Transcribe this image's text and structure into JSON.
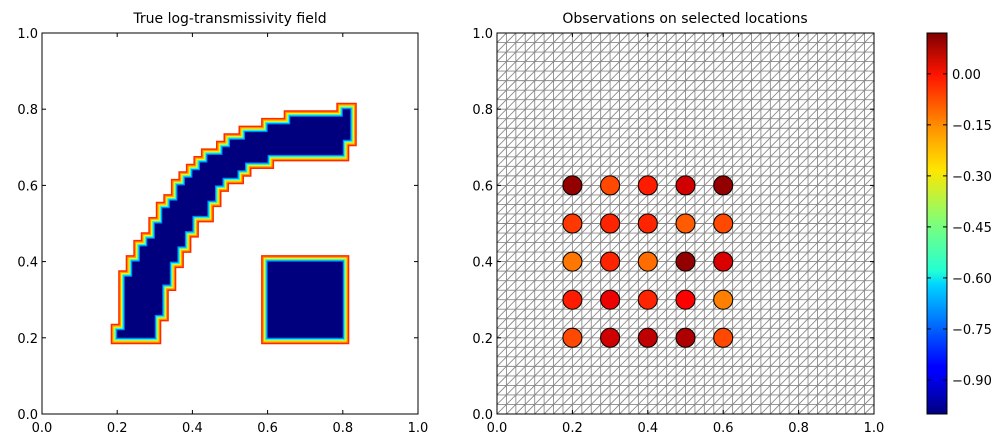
{
  "chart_data": [
    {
      "type": "heatmap",
      "title": "True log-transmissivity field",
      "xlim": [
        0.0,
        1.0
      ],
      "ylim": [
        0.0,
        1.0
      ],
      "xticks": [
        "0.0",
        "0.2",
        "0.4",
        "0.6",
        "0.8",
        "1.0"
      ],
      "yticks": [
        "0.0",
        "0.2",
        "0.4",
        "0.6",
        "0.8",
        "1.0"
      ],
      "grid": false,
      "background_value": 0.0,
      "regions": [
        {
          "name": "curved band",
          "value": -1.0,
          "polygon": [
            [
              0.2,
              0.2
            ],
            [
              0.3,
              0.2
            ],
            [
              0.3,
              0.26
            ],
            [
              0.32,
              0.26
            ],
            [
              0.32,
              0.34
            ],
            [
              0.34,
              0.34
            ],
            [
              0.34,
              0.4
            ],
            [
              0.36,
              0.4
            ],
            [
              0.36,
              0.44
            ],
            [
              0.38,
              0.44
            ],
            [
              0.38,
              0.48
            ],
            [
              0.4,
              0.48
            ],
            [
              0.4,
              0.52
            ],
            [
              0.44,
              0.52
            ],
            [
              0.44,
              0.56
            ],
            [
              0.46,
              0.56
            ],
            [
              0.46,
              0.6
            ],
            [
              0.48,
              0.6
            ],
            [
              0.48,
              0.62
            ],
            [
              0.52,
              0.62
            ],
            [
              0.52,
              0.64
            ],
            [
              0.54,
              0.64
            ],
            [
              0.54,
              0.66
            ],
            [
              0.6,
              0.66
            ],
            [
              0.6,
              0.68
            ],
            [
              0.8,
              0.68
            ],
            [
              0.8,
              0.72
            ],
            [
              0.82,
              0.72
            ],
            [
              0.82,
              0.8
            ],
            [
              0.8,
              0.8
            ],
            [
              0.8,
              0.78
            ],
            [
              0.66,
              0.78
            ],
            [
              0.66,
              0.76
            ],
            [
              0.6,
              0.76
            ],
            [
              0.6,
              0.74
            ],
            [
              0.54,
              0.74
            ],
            [
              0.54,
              0.72
            ],
            [
              0.5,
              0.72
            ],
            [
              0.5,
              0.7
            ],
            [
              0.48,
              0.7
            ],
            [
              0.48,
              0.68
            ],
            [
              0.44,
              0.68
            ],
            [
              0.44,
              0.66
            ],
            [
              0.42,
              0.66
            ],
            [
              0.42,
              0.64
            ],
            [
              0.4,
              0.64
            ],
            [
              0.4,
              0.62
            ],
            [
              0.38,
              0.62
            ],
            [
              0.38,
              0.6
            ],
            [
              0.36,
              0.6
            ],
            [
              0.36,
              0.56
            ],
            [
              0.34,
              0.56
            ],
            [
              0.34,
              0.54
            ],
            [
              0.32,
              0.54
            ],
            [
              0.32,
              0.5
            ],
            [
              0.3,
              0.5
            ],
            [
              0.3,
              0.46
            ],
            [
              0.28,
              0.46
            ],
            [
              0.28,
              0.44
            ],
            [
              0.26,
              0.44
            ],
            [
              0.26,
              0.4
            ],
            [
              0.24,
              0.4
            ],
            [
              0.24,
              0.36
            ],
            [
              0.22,
              0.36
            ],
            [
              0.22,
              0.22
            ],
            [
              0.2,
              0.22
            ]
          ]
        },
        {
          "name": "square block",
          "value": -1.0,
          "polygon": [
            [
              0.6,
              0.2
            ],
            [
              0.8,
              0.2
            ],
            [
              0.8,
              0.4
            ],
            [
              0.6,
              0.4
            ]
          ]
        }
      ]
    },
    {
      "type": "scatter",
      "title": "Observations on selected locations",
      "xlim": [
        0.0,
        1.0
      ],
      "ylim": [
        0.0,
        1.0
      ],
      "xticks": [
        "0.0",
        "0.2",
        "0.4",
        "0.6",
        "0.8",
        "1.0"
      ],
      "yticks": [
        "0.0",
        "0.2",
        "0.4",
        "0.6",
        "0.8",
        "1.0"
      ],
      "background_mesh": "triangular grid",
      "points": [
        {
          "x": 0.2,
          "y": 0.6,
          "value": 0.1
        },
        {
          "x": 0.3,
          "y": 0.6,
          "value": -0.1
        },
        {
          "x": 0.4,
          "y": 0.6,
          "value": -0.05
        },
        {
          "x": 0.5,
          "y": 0.6,
          "value": 0.03
        },
        {
          "x": 0.6,
          "y": 0.6,
          "value": 0.1
        },
        {
          "x": 0.2,
          "y": 0.5,
          "value": -0.08
        },
        {
          "x": 0.3,
          "y": 0.5,
          "value": -0.06
        },
        {
          "x": 0.4,
          "y": 0.5,
          "value": -0.06
        },
        {
          "x": 0.5,
          "y": 0.5,
          "value": -0.12
        },
        {
          "x": 0.6,
          "y": 0.5,
          "value": -0.1
        },
        {
          "x": 0.2,
          "y": 0.4,
          "value": -0.15
        },
        {
          "x": 0.3,
          "y": 0.4,
          "value": -0.06
        },
        {
          "x": 0.4,
          "y": 0.4,
          "value": -0.14
        },
        {
          "x": 0.5,
          "y": 0.4,
          "value": 0.1
        },
        {
          "x": 0.6,
          "y": 0.4,
          "value": 0.02
        },
        {
          "x": 0.2,
          "y": 0.3,
          "value": -0.05
        },
        {
          "x": 0.3,
          "y": 0.3,
          "value": 0.0
        },
        {
          "x": 0.4,
          "y": 0.3,
          "value": -0.06
        },
        {
          "x": 0.5,
          "y": 0.3,
          "value": -0.02
        },
        {
          "x": 0.6,
          "y": 0.3,
          "value": -0.16
        },
        {
          "x": 0.2,
          "y": 0.2,
          "value": -0.1
        },
        {
          "x": 0.3,
          "y": 0.2,
          "value": 0.03
        },
        {
          "x": 0.4,
          "y": 0.2,
          "value": 0.05
        },
        {
          "x": 0.5,
          "y": 0.2,
          "value": 0.07
        },
        {
          "x": 0.6,
          "y": 0.2,
          "value": -0.1
        }
      ]
    },
    {
      "type": "colorbar",
      "colormap": "jet",
      "range": [
        -1.0,
        0.12
      ],
      "ticks": [
        {
          "value": 0.0,
          "label": "0.00"
        },
        {
          "value": -0.15,
          "label": "−0.15"
        },
        {
          "value": -0.3,
          "label": "−0.30"
        },
        {
          "value": -0.45,
          "label": "−0.45"
        },
        {
          "value": -0.6,
          "label": "−0.60"
        },
        {
          "value": -0.75,
          "label": "−0.75"
        },
        {
          "value": -0.9,
          "label": "−0.90"
        }
      ]
    }
  ]
}
